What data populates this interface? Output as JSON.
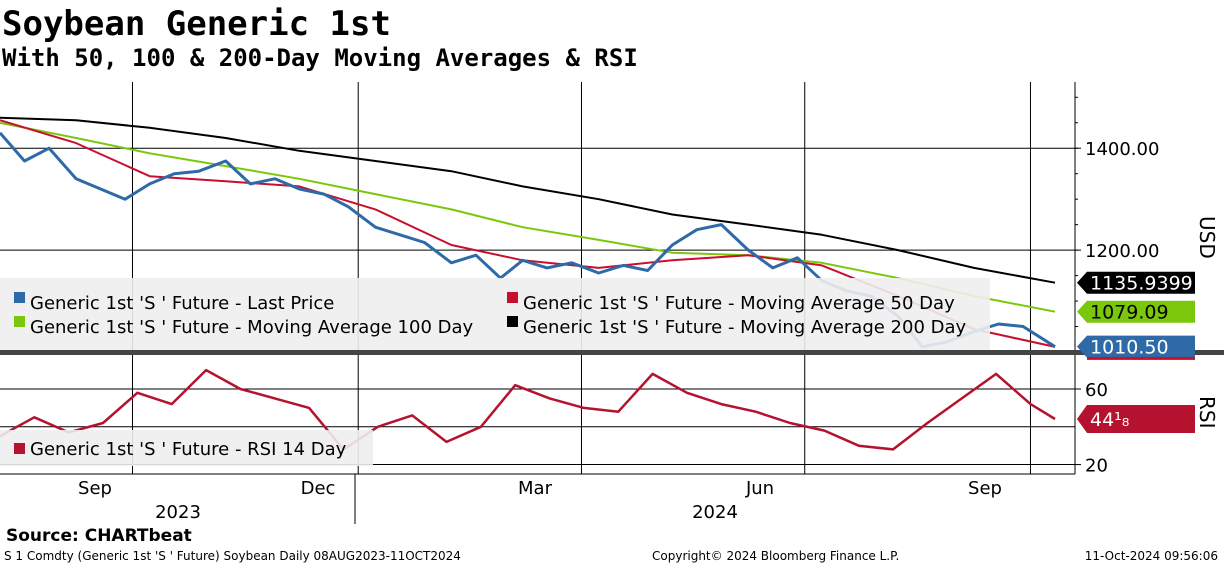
{
  "header": {
    "title": "Soybean Generic 1st",
    "subtitle": "With 50, 100 & 200-Day Moving Averages & RSI"
  },
  "footer": {
    "source": "Source: CHARTbeat",
    "description": "S 1 Comdty (Generic 1st 'S ' Future) Soybean  Daily 08AUG2023-11OCT2024",
    "copyright": "Copyright© 2024 Bloomberg Finance L.P.",
    "timestamp": "11-Oct-2024 09:56:06"
  },
  "colors": {
    "last_price": "#2e6aa8",
    "ma50": "#c8102e",
    "ma100": "#7ac70c",
    "ma200": "#000000",
    "rsi": "#b5122f"
  },
  "chart_data": [
    {
      "type": "line",
      "panel": "price",
      "ylabel": "USD",
      "ylim": [
        1000,
        1530
      ],
      "yticks": [
        1400,
        1200
      ],
      "ytick_labels": [
        "1400.00",
        "1200.00"
      ],
      "x_month_labels": [
        "Sep",
        "Dec",
        "Mar",
        "Jun",
        "Sep"
      ],
      "x_year_labels": [
        "2023",
        "2024"
      ],
      "grid": true,
      "legend_position": "bottom-left",
      "series": [
        {
          "name": "Generic 1st 'S ' Future - Last Price",
          "x": [
            "2023-08-08",
            "2023-08-18",
            "2023-08-28",
            "2023-09-08",
            "2023-09-18",
            "2023-09-28",
            "2023-10-08",
            "2023-10-18",
            "2023-10-28",
            "2023-11-08",
            "2023-11-18",
            "2023-11-28",
            "2023-12-08",
            "2023-12-18",
            "2023-12-28",
            "2024-01-08",
            "2024-01-18",
            "2024-01-28",
            "2024-02-08",
            "2024-02-18",
            "2024-02-28",
            "2024-03-08",
            "2024-03-18",
            "2024-03-28",
            "2024-04-08",
            "2024-04-18",
            "2024-04-28",
            "2024-05-08",
            "2024-05-18",
            "2024-05-28",
            "2024-06-08",
            "2024-06-18",
            "2024-06-28",
            "2024-07-08",
            "2024-07-18",
            "2024-07-28",
            "2024-08-08",
            "2024-08-18",
            "2024-08-28",
            "2024-09-08",
            "2024-09-18",
            "2024-09-28",
            "2024-10-11"
          ],
          "values": [
            1430,
            1375,
            1400,
            1340,
            1320,
            1300,
            1330,
            1350,
            1355,
            1375,
            1330,
            1340,
            1320,
            1310,
            1285,
            1245,
            1230,
            1215,
            1175,
            1190,
            1145,
            1180,
            1165,
            1175,
            1155,
            1170,
            1160,
            1210,
            1240,
            1250,
            1200,
            1165,
            1185,
            1140,
            1120,
            1110,
            1070,
            1010,
            1020,
            1040,
            1055,
            1050,
            1010.5
          ]
        },
        {
          "name": "Generic 1st 'S ' Future - Moving Average 50 Day",
          "x": [
            "2023-08-08",
            "2023-09-08",
            "2023-10-08",
            "2023-11-08",
            "2023-12-08",
            "2024-01-08",
            "2024-02-08",
            "2024-03-08",
            "2024-04-08",
            "2024-05-08",
            "2024-06-08",
            "2024-07-08",
            "2024-08-08",
            "2024-09-08",
            "2024-10-11"
          ],
          "values": [
            1455,
            1410,
            1345,
            1335,
            1325,
            1280,
            1210,
            1180,
            1165,
            1180,
            1190,
            1170,
            1110,
            1045,
            1010
          ]
        },
        {
          "name": "Generic 1st 'S ' Future - Moving Average 100 Day",
          "x": [
            "2023-08-08",
            "2023-09-08",
            "2023-10-08",
            "2023-11-08",
            "2023-12-08",
            "2024-01-08",
            "2024-02-08",
            "2024-03-08",
            "2024-04-08",
            "2024-05-08",
            "2024-06-08",
            "2024-07-08",
            "2024-08-08",
            "2024-09-08",
            "2024-10-11"
          ],
          "values": [
            1450,
            1420,
            1390,
            1365,
            1340,
            1310,
            1280,
            1245,
            1220,
            1195,
            1190,
            1175,
            1145,
            1110,
            1079.09
          ]
        },
        {
          "name": "Generic 1st 'S ' Future - Moving Average 200 Day",
          "x": [
            "2023-08-08",
            "2023-09-08",
            "2023-10-08",
            "2023-11-08",
            "2023-12-08",
            "2024-01-08",
            "2024-02-08",
            "2024-03-08",
            "2024-04-08",
            "2024-05-08",
            "2024-06-08",
            "2024-07-08",
            "2024-08-08",
            "2024-09-08",
            "2024-10-11"
          ],
          "values": [
            1460,
            1455,
            1440,
            1420,
            1395,
            1375,
            1355,
            1325,
            1300,
            1270,
            1250,
            1230,
            1200,
            1165,
            1135.94
          ]
        }
      ],
      "last_value_labels": [
        "1135.9399",
        "1079.09",
        "1010.50"
      ]
    },
    {
      "type": "line",
      "panel": "rsi",
      "ylabel": "RSI",
      "ylim": [
        15,
        78
      ],
      "yticks": [
        60,
        20
      ],
      "ytick_labels": [
        "60",
        "20"
      ],
      "grid": true,
      "legend_position": "bottom-left",
      "series": [
        {
          "name": "Generic 1st 'S ' Future - RSI 14 Day",
          "x": [
            "2023-08-08",
            "2023-08-22",
            "2023-09-05",
            "2023-09-19",
            "2023-10-03",
            "2023-10-17",
            "2023-10-31",
            "2023-11-14",
            "2023-11-28",
            "2023-12-12",
            "2023-12-26",
            "2024-01-09",
            "2024-01-23",
            "2024-02-06",
            "2024-02-20",
            "2024-03-05",
            "2024-03-19",
            "2024-04-02",
            "2024-04-16",
            "2024-04-30",
            "2024-05-14",
            "2024-05-28",
            "2024-06-11",
            "2024-06-25",
            "2024-07-09",
            "2024-07-23",
            "2024-08-06",
            "2024-08-20",
            "2024-09-03",
            "2024-09-17",
            "2024-10-01",
            "2024-10-11"
          ],
          "values": [
            35,
            45,
            37,
            42,
            58,
            52,
            70,
            60,
            55,
            50,
            28,
            40,
            46,
            32,
            40,
            62,
            55,
            50,
            48,
            68,
            58,
            52,
            48,
            42,
            38,
            30,
            28,
            42,
            55,
            68,
            52,
            44.125
          ]
        }
      ],
      "last_value_labels": [
        "44¹₈"
      ]
    }
  ]
}
